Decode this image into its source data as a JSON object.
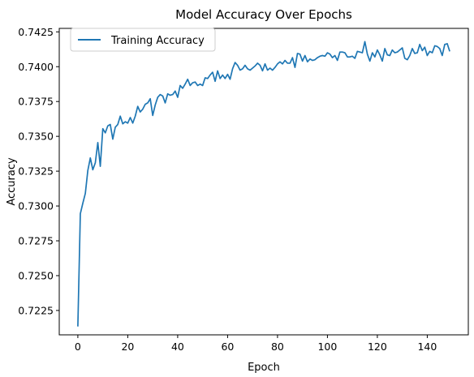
{
  "chart_data": {
    "type": "line",
    "title": "Model Accuracy Over Epochs",
    "xlabel": "Epoch",
    "ylabel": "Accuracy",
    "xlim": [
      -7.45,
      156.45
    ],
    "ylim": [
      0.72075,
      0.74275
    ],
    "x_ticks": [
      0,
      20,
      40,
      60,
      80,
      100,
      120,
      140
    ],
    "y_ticks": [
      0.7225,
      0.725,
      0.7275,
      0.73,
      0.7325,
      0.735,
      0.7375,
      0.74,
      0.7425
    ],
    "y_tick_labels": [
      "0.7225",
      "0.7250",
      "0.7275",
      "0.7300",
      "0.7325",
      "0.7350",
      "0.7375",
      "0.7400",
      "0.7425"
    ],
    "grid": false,
    "legend_position": "upper-left",
    "series": [
      {
        "name": "Training Accuracy",
        "color": "#1f77b4",
        "x": [
          0,
          1,
          2,
          3,
          4,
          5,
          6,
          7,
          8,
          9,
          10,
          11,
          12,
          13,
          14,
          15,
          16,
          17,
          18,
          19,
          20,
          21,
          22,
          23,
          24,
          25,
          26,
          27,
          28,
          29,
          30,
          31,
          32,
          33,
          34,
          35,
          36,
          37,
          38,
          39,
          40,
          41,
          42,
          43,
          44,
          45,
          46,
          47,
          48,
          49,
          50,
          51,
          52,
          53,
          54,
          55,
          56,
          57,
          58,
          59,
          60,
          61,
          62,
          63,
          64,
          65,
          66,
          67,
          68,
          69,
          70,
          71,
          72,
          73,
          74,
          75,
          76,
          77,
          78,
          79,
          80,
          81,
          82,
          83,
          84,
          85,
          86,
          87,
          88,
          89,
          90,
          91,
          92,
          93,
          94,
          95,
          96,
          97,
          98,
          99,
          100,
          101,
          102,
          103,
          104,
          105,
          106,
          107,
          108,
          109,
          110,
          111,
          112,
          113,
          114,
          115,
          116,
          117,
          118,
          119,
          120,
          121,
          122,
          123,
          124,
          125,
          126,
          127,
          128,
          129,
          130,
          131,
          132,
          133,
          134,
          135,
          136,
          137,
          138,
          139,
          140,
          141,
          142,
          143,
          144,
          145,
          146,
          147,
          148,
          149
        ],
        "y": [
          0.72135,
          0.72945,
          0.7302,
          0.7309,
          0.73255,
          0.73345,
          0.7326,
          0.7331,
          0.73455,
          0.73285,
          0.73555,
          0.73525,
          0.73575,
          0.73585,
          0.7348,
          0.73565,
          0.73585,
          0.73645,
          0.7359,
          0.73605,
          0.73595,
          0.73635,
          0.73595,
          0.73645,
          0.73715,
          0.73675,
          0.73695,
          0.7373,
          0.7374,
          0.7377,
          0.7365,
          0.73725,
          0.7378,
          0.738,
          0.7379,
          0.7374,
          0.73805,
          0.73795,
          0.738,
          0.73825,
          0.7378,
          0.73865,
          0.73845,
          0.73875,
          0.7391,
          0.73865,
          0.73885,
          0.7389,
          0.73865,
          0.73875,
          0.73865,
          0.7392,
          0.73915,
          0.7394,
          0.7396,
          0.73895,
          0.7397,
          0.73915,
          0.7394,
          0.73915,
          0.73945,
          0.7391,
          0.73985,
          0.7403,
          0.7401,
          0.73975,
          0.73985,
          0.7401,
          0.73985,
          0.73975,
          0.7399,
          0.74005,
          0.74025,
          0.7401,
          0.7397,
          0.7402,
          0.73975,
          0.7399,
          0.73975,
          0.73995,
          0.7402,
          0.74035,
          0.7402,
          0.74045,
          0.74025,
          0.74025,
          0.74065,
          0.73995,
          0.74095,
          0.7409,
          0.7404,
          0.7408,
          0.74035,
          0.74055,
          0.74045,
          0.7405,
          0.74065,
          0.74075,
          0.7408,
          0.74075,
          0.741,
          0.7409,
          0.74065,
          0.7408,
          0.74045,
          0.74105,
          0.74105,
          0.741,
          0.7407,
          0.7407,
          0.74075,
          0.7406,
          0.7411,
          0.74105,
          0.741,
          0.7418,
          0.7409,
          0.7404,
          0.741,
          0.7407,
          0.7412,
          0.74085,
          0.7404,
          0.7413,
          0.74085,
          0.7408,
          0.7412,
          0.741,
          0.74105,
          0.7412,
          0.74135,
          0.7406,
          0.7405,
          0.7408,
          0.7413,
          0.74095,
          0.741,
          0.7416,
          0.74115,
          0.7414,
          0.7408,
          0.7411,
          0.741,
          0.7415,
          0.74145,
          0.7413,
          0.7408,
          0.7416,
          0.74165,
          0.7411
        ]
      }
    ]
  }
}
